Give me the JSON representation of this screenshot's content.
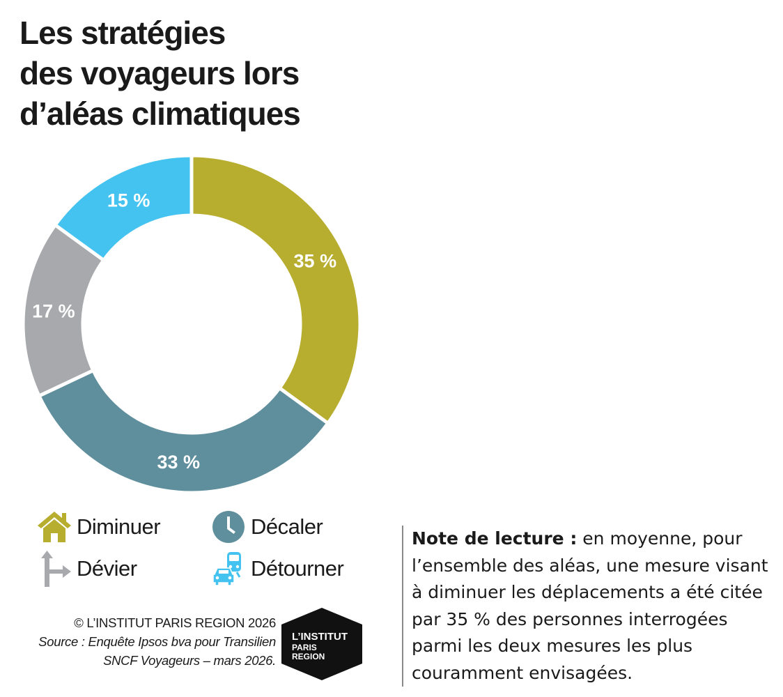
{
  "title_lines": [
    "Les stratégies",
    "des voyageurs lors",
    "d’aléas climatiques"
  ],
  "chart_data": {
    "type": "pie",
    "variant": "donut",
    "title": "Les stratégies des voyageurs lors d’aléas climatiques",
    "slices": [
      {
        "name": "Diminuer",
        "value": 35,
        "label": "35 %",
        "color": "#b7ad2e"
      },
      {
        "name": "Décaler",
        "value": 33,
        "label": "33 %",
        "color": "#5f8f9c"
      },
      {
        "name": "Dévier",
        "value": 17,
        "label": "17 %",
        "color": "#a7a9ac"
      },
      {
        "name": "Détourner",
        "value": 15,
        "label": "15 %",
        "color": "#44c3f0"
      }
    ],
    "legend_placement": "bottom-left",
    "order": "clockwise from top"
  },
  "legend": [
    {
      "label": "Diminuer",
      "icon": "house-icon",
      "color": "#b7ad2e"
    },
    {
      "label": "Décaler",
      "icon": "clock-icon",
      "color": "#5f8f9c"
    },
    {
      "label": "Dévier",
      "icon": "road-arrow-icon",
      "color": "#a7a9ac"
    },
    {
      "label": "Détourner",
      "icon": "car-train-icon",
      "color": "#44c3f0"
    }
  ],
  "credits": {
    "copyright": "© L’INSTITUT PARIS REGION 2026",
    "source_line1": "Source : Enquête Ipsos bva pour Transilien",
    "source_line2": "SNCF Voyageurs – mars 2026."
  },
  "logo": {
    "line1": "L’INSTITUT",
    "line2": "PARIS",
    "line3": "REGION"
  },
  "note": {
    "label": "Note de lecture :",
    "text": " en moyenne, pour l’ensemble des aléas, une mesure visant à diminuer les déplacements a été citée par 35 % des personnes interrogées parmi les deux mesures les plus couramment envisagées."
  }
}
